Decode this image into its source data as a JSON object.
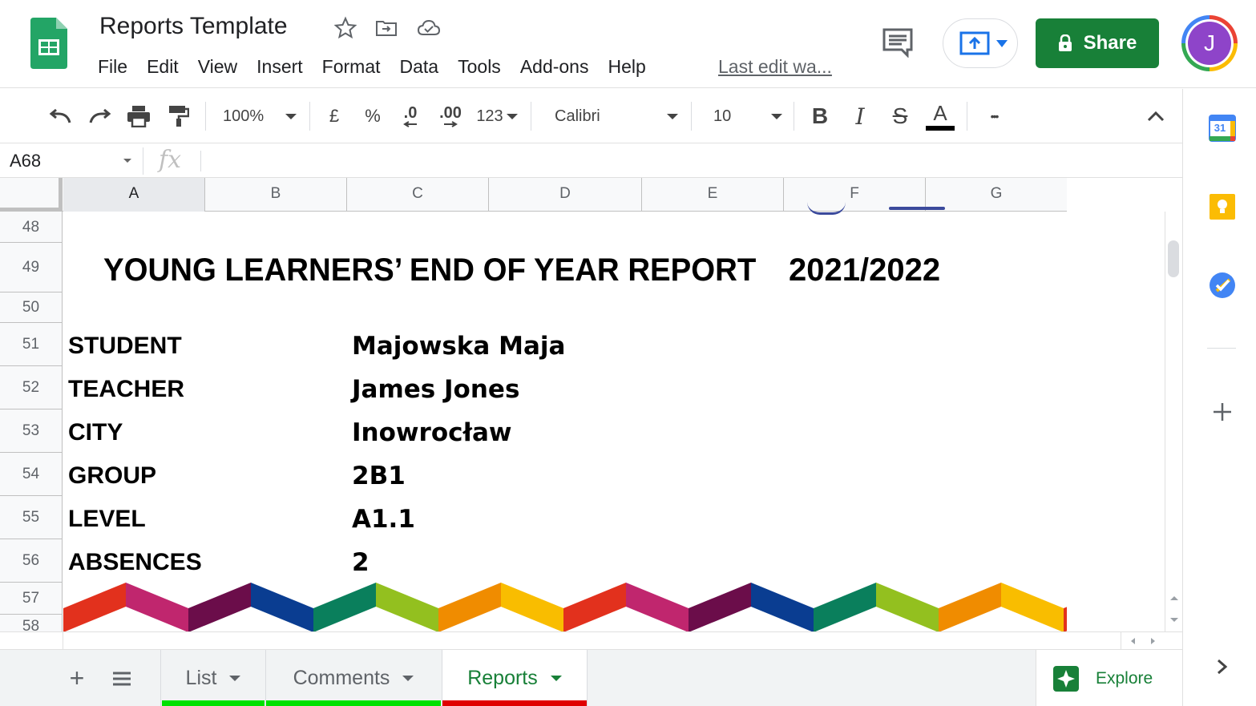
{
  "header": {
    "title": "Reports Template",
    "menu": [
      "File",
      "Edit",
      "View",
      "Insert",
      "Format",
      "Data",
      "Tools",
      "Add-ons",
      "Help"
    ],
    "last_edit": "Last edit wa...",
    "share_label": "Share",
    "avatar_letter": "J"
  },
  "toolbar": {
    "zoom": "100%",
    "currency": "£",
    "percent": "%",
    "decrease_decimal": ".0",
    "increase_decimal": ".00",
    "number_format": "123",
    "font": "Calibri",
    "font_size": "10",
    "bold": "B",
    "italic": "I",
    "strike": "S",
    "text_color": "A",
    "more": "•••"
  },
  "formula_bar": {
    "cell_ref": "A68",
    "fx_label": "fx",
    "value": ""
  },
  "grid": {
    "columns": [
      "A",
      "B",
      "C",
      "D",
      "E",
      "F",
      "G"
    ],
    "rows": [
      "48",
      "49",
      "50",
      "51",
      "52",
      "53",
      "54",
      "55",
      "56",
      "57",
      "58"
    ],
    "report_title": "YOUNG LEARNERS’ END OF YEAR REPORT",
    "report_year": "2021/2022",
    "fields": [
      {
        "label": "STUDENT",
        "value": "Majowska Maja"
      },
      {
        "label": "TEACHER",
        "value": "James Jones"
      },
      {
        "label": "CITY",
        "value": "Inowrocław"
      },
      {
        "label": "GROUP",
        "value": "2B1"
      },
      {
        "label": "LEVEL",
        "value": "A1.1"
      },
      {
        "label": "ABSENCES",
        "value": "2"
      }
    ],
    "zigzag_colors": [
      "#e2311d",
      "#c0266e",
      "#6b0d4a",
      "#0a3d91",
      "#0a7f5c",
      "#93c01f",
      "#f08c00",
      "#f9bd00"
    ]
  },
  "sheets": {
    "add_label": "+",
    "tabs": [
      {
        "label": "List",
        "color": "#00e000",
        "active": false
      },
      {
        "label": "Comments",
        "color": "#00e000",
        "active": false
      },
      {
        "label": "Reports",
        "color": "#e00000",
        "active": true
      }
    ],
    "explore_label": "Explore"
  },
  "side_panel": {
    "calendar_day": "31"
  }
}
